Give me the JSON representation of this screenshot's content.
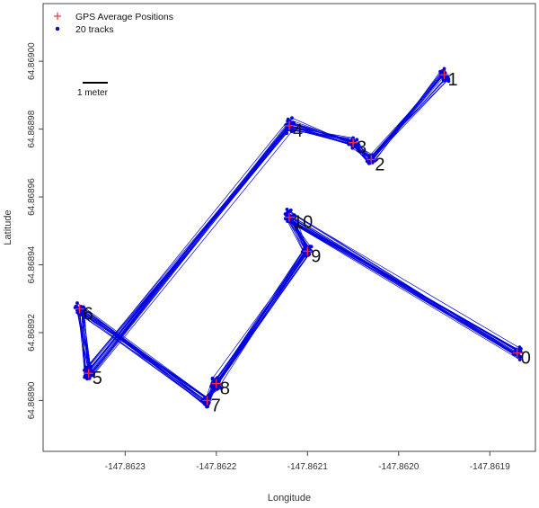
{
  "chart_data": {
    "type": "scatter",
    "xlabel": "Longitude",
    "ylabel": "Latitude",
    "xlim": [
      -147.86239,
      -147.86185
    ],
    "ylim": [
      64.868885,
      64.869017
    ],
    "x_ticks": [
      {
        "value": -147.8623,
        "label": "-147.8623"
      },
      {
        "value": -147.8622,
        "label": "-147.8622"
      },
      {
        "value": -147.8621,
        "label": "-147.8621"
      },
      {
        "value": -147.862,
        "label": "-147.8620"
      },
      {
        "value": -147.8619,
        "label": "-147.8619"
      }
    ],
    "y_ticks": [
      {
        "value": 64.8689,
        "label": "64.86890"
      },
      {
        "value": 64.86892,
        "label": "64.86892"
      },
      {
        "value": 64.86894,
        "label": "64.86894"
      },
      {
        "value": 64.86896,
        "label": "64.86896"
      },
      {
        "value": 64.86898,
        "label": "64.86898"
      },
      {
        "value": 64.869,
        "label": "64.86900"
      }
    ],
    "legend": {
      "position": "top-left",
      "entries": [
        {
          "label": "GPS Average Positions",
          "marker": "plus",
          "color": "#ff2a2a"
        },
        {
          "label": "20 tracks",
          "marker": "dot",
          "color": "#0000dd"
        }
      ]
    },
    "scale_bar": {
      "label": "1 meter"
    },
    "colors": {
      "track": "#0000dd",
      "average": "#ff2a2a"
    },
    "num_tracks": 20,
    "waypoints": [
      {
        "label": "0",
        "lon": -147.86187,
        "lat": 64.868914
      },
      {
        "label": "1",
        "lon": -147.86195,
        "lat": 64.868996
      },
      {
        "label": "2",
        "lon": -147.86203,
        "lat": 64.868971
      },
      {
        "label": "3",
        "lon": -147.86205,
        "lat": 64.868976
      },
      {
        "label": "4",
        "lon": -147.86212,
        "lat": 64.868981
      },
      {
        "label": "10",
        "lon": -147.86212,
        "lat": 64.868954
      },
      {
        "label": "9",
        "lon": -147.8621,
        "lat": 64.868944
      },
      {
        "label": "8",
        "lon": -147.8622,
        "lat": 64.868905
      },
      {
        "label": "7",
        "lon": -147.86221,
        "lat": 64.8689
      },
      {
        "label": "5",
        "lon": -147.86234,
        "lat": 64.868908
      },
      {
        "label": "6",
        "lon": -147.86235,
        "lat": 64.868927
      }
    ]
  }
}
